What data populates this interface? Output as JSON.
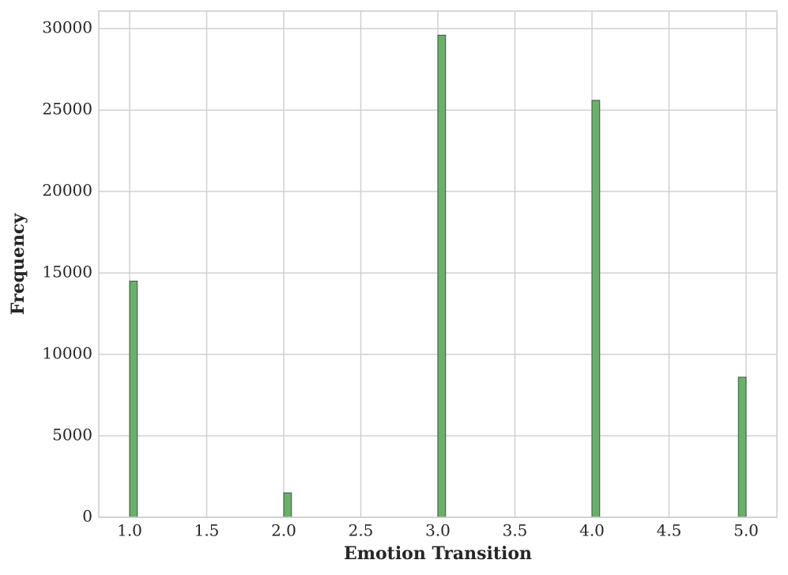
{
  "chart_data": {
    "type": "histogram",
    "x_label": "Emotion Transition",
    "y_label": "Frequency",
    "bins": [
      1,
      1.05,
      1.1,
      1.15,
      1.2,
      1.25,
      1.3,
      1.35,
      1.4,
      1.45,
      1.5,
      1.55,
      1.6,
      1.65,
      1.7,
      1.75,
      1.8,
      1.85,
      1.9,
      1.95,
      2,
      2.05,
      2.1,
      2.15,
      2.2,
      2.25,
      2.3,
      2.35,
      2.4,
      2.45,
      2.5,
      2.55,
      2.6,
      2.65,
      2.7,
      2.75,
      2.8,
      2.85,
      2.9,
      2.95,
      3,
      3.05,
      3.1,
      3.15,
      3.2,
      3.25,
      3.3,
      3.35,
      3.4,
      3.45,
      3.5,
      3.55,
      3.6,
      3.65,
      3.7,
      3.75,
      3.8,
      3.85,
      3.9,
      3.95,
      4,
      4.05,
      4.1,
      4.15,
      4.2,
      4.25,
      4.3,
      4.35,
      4.4,
      4.45,
      4.5,
      4.55,
      4.6,
      4.65,
      4.7,
      4.75,
      4.8,
      4.85,
      4.9,
      4.95,
      5
    ],
    "counts": [
      14500,
      0,
      0,
      0,
      0,
      0,
      0,
      0,
      0,
      0,
      0,
      0,
      0,
      0,
      0,
      0,
      0,
      0,
      0,
      0,
      1500,
      0,
      0,
      0,
      0,
      0,
      0,
      0,
      0,
      0,
      0,
      0,
      0,
      0,
      0,
      0,
      0,
      0,
      0,
      0,
      29600,
      0,
      0,
      0,
      0,
      0,
      0,
      0,
      0,
      0,
      0,
      0,
      0,
      0,
      0,
      0,
      0,
      0,
      0,
      0,
      25600,
      0,
      0,
      0,
      0,
      0,
      0,
      0,
      0,
      0,
      0,
      0,
      0,
      0,
      0,
      0,
      0,
      0,
      0,
      8600
    ],
    "color": "#66b366",
    "edge_color": "#4d4d4d",
    "xlim": [
      0.8,
      5.2
    ],
    "xticks": [
      {
        "value": 1,
        "label": "1.0"
      },
      {
        "value": 1.5,
        "label": "1.5"
      },
      {
        "value": 2,
        "label": "2.0"
      },
      {
        "value": 2.5,
        "label": "2.5"
      },
      {
        "value": 3,
        "label": "3.0"
      },
      {
        "value": 3.5,
        "label": "3.5"
      },
      {
        "value": 4,
        "label": "4.0"
      },
      {
        "value": 4.5,
        "label": "4.5"
      },
      {
        "value": 5,
        "label": "5.0"
      }
    ],
    "ylim": [
      0,
      31080
    ],
    "yticks": [
      0,
      5000,
      10000,
      15000,
      20000,
      25000,
      30000
    ],
    "grid": true
  }
}
